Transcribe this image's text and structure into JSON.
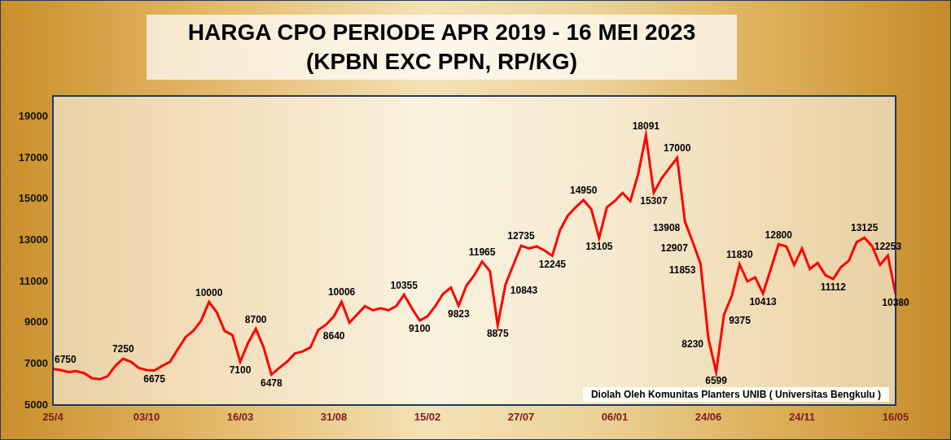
{
  "chart_data": {
    "type": "line",
    "title": "HARGA CPO PERIODE APR 2019 - 16 MEI 2023",
    "subtitle": "(KPBN EXC PPN, RP/KG)",
    "source": "Diolah Oleh Komunitas Planters UNIB ( Universitas Bengkulu )",
    "categories": [
      "25/4",
      null,
      null,
      null,
      null,
      null,
      null,
      null,
      null,
      null,
      null,
      null,
      "03/10",
      null,
      null,
      null,
      null,
      null,
      null,
      null,
      null,
      null,
      null,
      null,
      "16/03",
      null,
      null,
      null,
      null,
      null,
      null,
      null,
      null,
      null,
      null,
      null,
      "31/08",
      null,
      null,
      null,
      null,
      null,
      null,
      null,
      null,
      null,
      null,
      null,
      "15/02",
      null,
      null,
      null,
      null,
      null,
      null,
      null,
      null,
      null,
      null,
      null,
      "27/07",
      null,
      null,
      null,
      null,
      null,
      null,
      null,
      null,
      null,
      null,
      null,
      "06/01",
      null,
      null,
      null,
      null,
      null,
      null,
      null,
      null,
      null,
      null,
      null,
      "24/06",
      null,
      null,
      null,
      null,
      null,
      null,
      null,
      null,
      null,
      null,
      null,
      "24/11",
      null,
      null,
      null,
      null,
      null,
      null,
      null,
      null,
      null,
      null,
      null,
      "16/05"
    ],
    "values": [
      6750,
      6700,
      6600,
      6650,
      6550,
      6300,
      6250,
      6400,
      6900,
      7250,
      7100,
      6800,
      6700,
      6675,
      6900,
      7100,
      7700,
      8300,
      8600,
      9100,
      10000,
      9500,
      8600,
      8400,
      7100,
      8000,
      8700,
      7800,
      6478,
      6800,
      7100,
      7500,
      7600,
      7800,
      8640,
      8900,
      9300,
      10006,
      9000,
      9400,
      9800,
      9600,
      9700,
      9600,
      9800,
      10355,
      9700,
      9100,
      9300,
      9800,
      10400,
      10700,
      9823,
      10800,
      11300,
      11965,
      11500,
      8875,
      10843,
      11800,
      12735,
      12600,
      12700,
      12500,
      12245,
      13500,
      14200,
      14600,
      14950,
      14500,
      13105,
      14600,
      14900,
      15300,
      14900,
      16200,
      18091,
      15307,
      16000,
      16500,
      17000,
      13908,
      12907,
      11853,
      8230,
      6599,
      9375,
      10300,
      11830,
      11000,
      11200,
      10413,
      11600,
      12800,
      12700,
      11800,
      12600,
      11600,
      11900,
      11300,
      11112,
      11700,
      12000,
      12900,
      13125,
      12700,
      11800,
      12253,
      10380
    ],
    "value_labels": [
      "6750",
      null,
      null,
      null,
      null,
      null,
      null,
      null,
      null,
      "7250",
      null,
      null,
      null,
      "6675",
      null,
      null,
      null,
      null,
      null,
      null,
      "10000",
      null,
      null,
      null,
      "7100",
      null,
      "8700",
      null,
      "6478",
      null,
      null,
      null,
      null,
      null,
      "8640",
      null,
      null,
      "10006",
      null,
      null,
      null,
      null,
      null,
      null,
      null,
      "10355",
      null,
      "9100",
      null,
      null,
      null,
      null,
      "9823",
      null,
      null,
      "11965",
      null,
      "8875",
      "10843",
      null,
      "12735",
      null,
      null,
      null,
      "12245",
      null,
      null,
      null,
      "14950",
      null,
      "13105",
      null,
      null,
      null,
      null,
      null,
      "18091",
      "15307",
      null,
      null,
      "17000",
      "13908",
      "12907",
      "11853",
      "8230",
      "6599",
      "9375",
      null,
      "11830",
      null,
      null,
      "10413",
      null,
      "12800",
      null,
      null,
      null,
      null,
      null,
      null,
      "11112",
      null,
      null,
      null,
      "13125",
      null,
      null,
      "12253",
      "10380"
    ],
    "data_labels": true,
    "color": "#ff0000",
    "ylim": [
      5000,
      20000
    ],
    "yticks": [
      5000,
      7000,
      9000,
      11000,
      13000,
      15000,
      17000,
      19000
    ],
    "grid": false
  }
}
